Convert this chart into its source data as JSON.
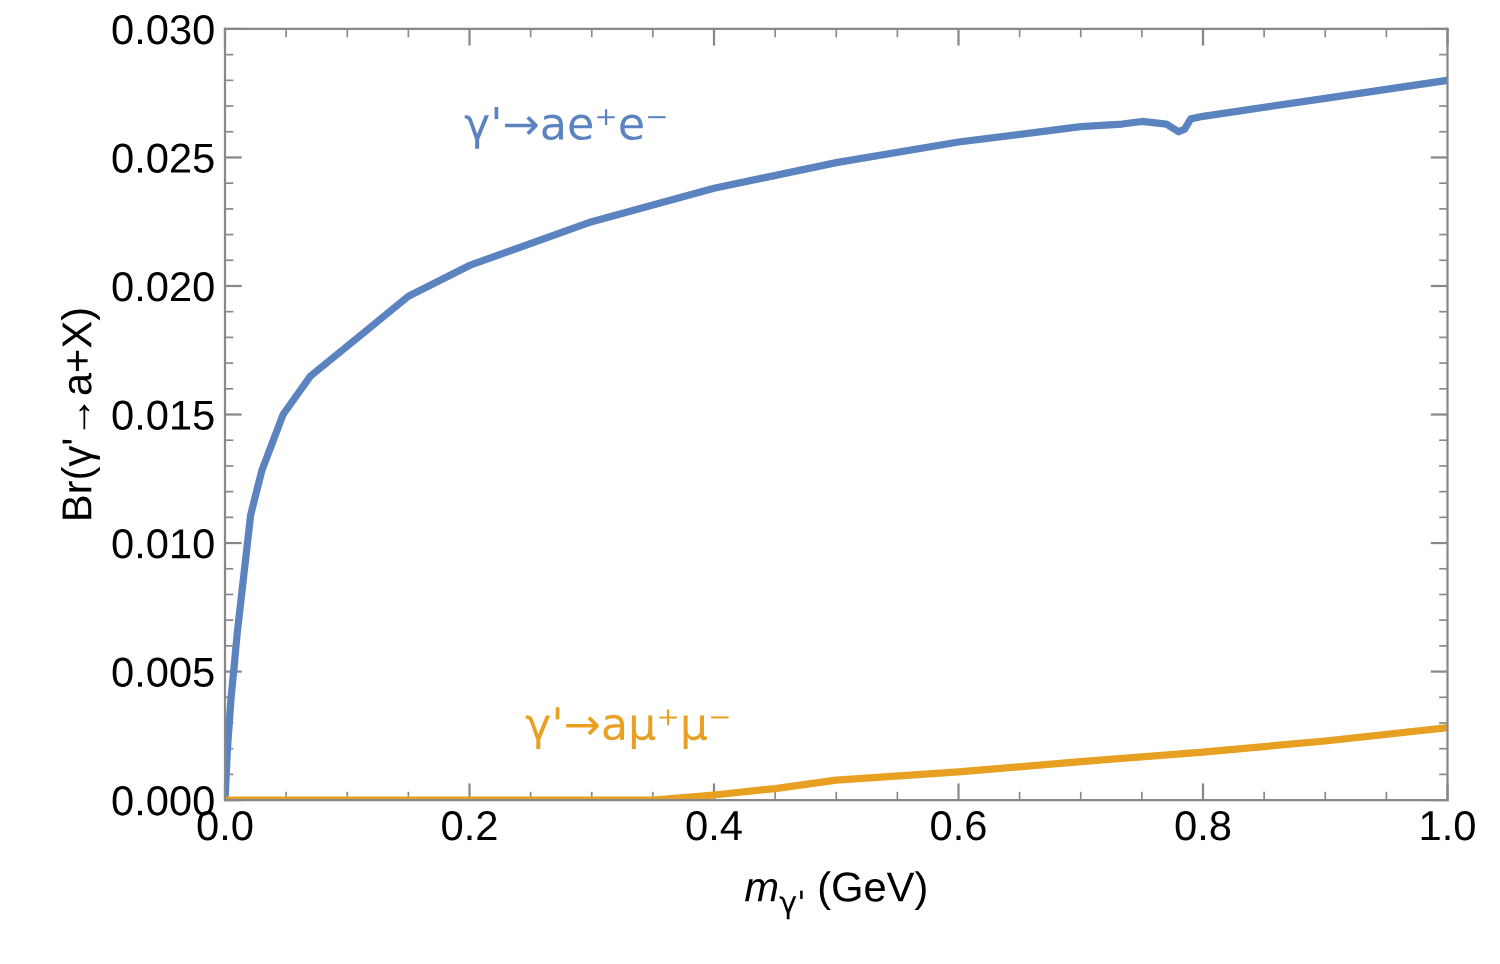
{
  "chart_data": {
    "type": "line",
    "xlabel": "m$_{γ'}$ (GeV)",
    "ylabel": "Br(γ'→a+X)",
    "xlim": [
      0,
      1
    ],
    "ylim": [
      0,
      0.03
    ],
    "xticks": [
      {
        "value": 0,
        "label": "0.0"
      },
      0.2,
      0.4,
      0.6,
      0.8,
      {
        "value": 1,
        "label": "1.0"
      }
    ],
    "yticks": [
      {
        "value": 0,
        "label": "0.000"
      },
      0.005,
      {
        "value": 0.01,
        "label": "0.010"
      },
      0.015,
      {
        "value": 0.02,
        "label": "0.020"
      },
      0.025,
      {
        "value": 0.03,
        "label": "0.030"
      }
    ],
    "grid": false,
    "legend": false,
    "marker": "none",
    "line_style": "solid",
    "series": [
      {
        "name": "γ'→ae⁺e⁻",
        "color": "#5b83c0",
        "x": [
          0,
          0.002,
          0.005,
          0.0075,
          0.01,
          0.021,
          0.03,
          0.0475,
          0.07,
          0.114,
          0.15,
          0.2,
          0.3,
          0.4,
          0.5,
          0.6,
          0.7,
          0.734,
          0.75,
          0.77,
          0.78,
          0.785,
          0.79,
          0.8,
          0.9,
          1.0
        ],
        "values": [
          0,
          0.002,
          0.004,
          0.0052,
          0.0065,
          0.0111,
          0.0128,
          0.015,
          0.0165,
          0.0182,
          0.0196,
          0.0208,
          0.0225,
          0.0238,
          0.0248,
          0.0256,
          0.0262,
          0.0263,
          0.0264,
          0.0263,
          0.026,
          0.0261,
          0.0265,
          0.0266,
          0.0273,
          0.028
        ]
      },
      {
        "name": "γ'→aμ⁺μ⁻",
        "color": "#e8a022",
        "x": [
          0,
          0.1,
          0.2,
          0.3,
          0.35,
          0.4,
          0.45,
          0.5,
          0.6,
          0.7,
          0.8,
          0.9,
          1.0
        ],
        "values": [
          0,
          0,
          0,
          0,
          0,
          0.0002,
          0.00045,
          0.00078,
          0.0011,
          0.0015,
          0.00187,
          0.0023,
          0.00282
        ]
      }
    ]
  }
}
